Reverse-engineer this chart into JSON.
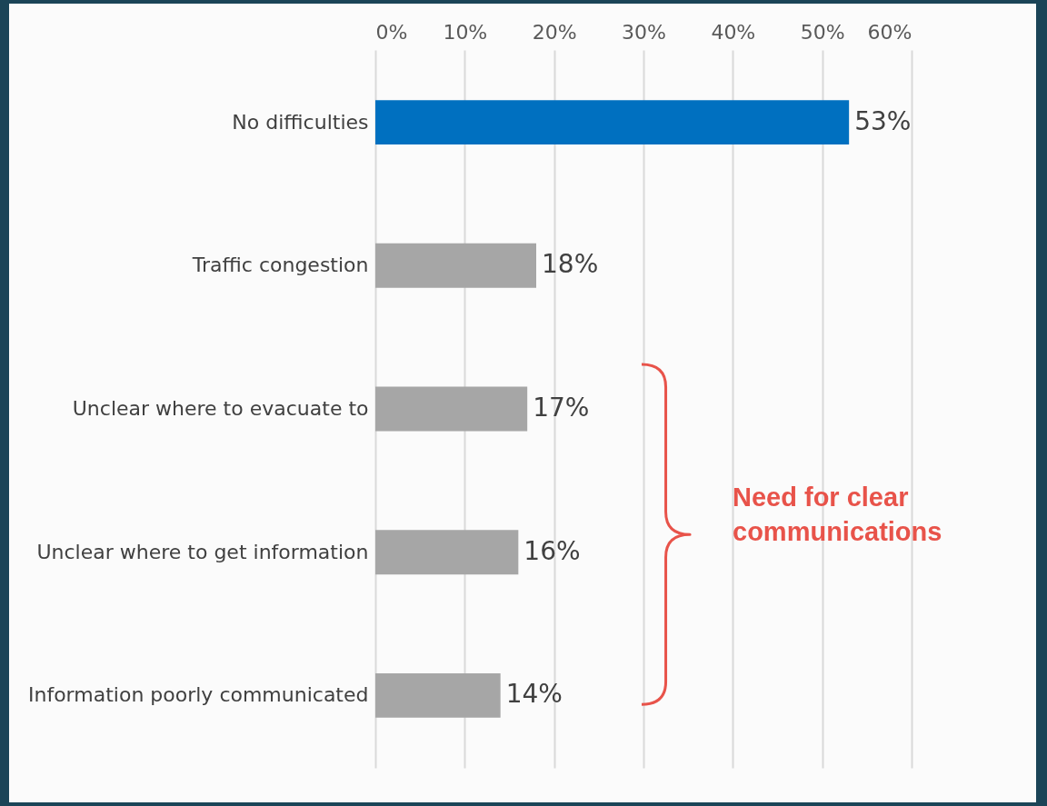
{
  "chart_data": {
    "type": "bar",
    "orientation": "horizontal",
    "categories": [
      "No difficulties",
      "Traffic congestion",
      "Unclear where to evacuate to",
      "Unclear where to get information",
      "Information poorly communicated"
    ],
    "values": [
      53,
      18,
      17,
      16,
      14
    ],
    "colors": [
      "#0070c0",
      "#a6a6a6",
      "#a6a6a6",
      "#a6a6a6",
      "#a6a6a6"
    ],
    "value_labels": [
      "53%",
      "18%",
      "17%",
      "16%",
      "14%"
    ],
    "xlim": [
      0,
      60
    ],
    "xticks": [
      {
        "value": 0,
        "label": "0%"
      },
      {
        "value": 10,
        "label": "10%"
      },
      {
        "value": 20,
        "label": "20%"
      },
      {
        "value": 30,
        "label": "30%"
      },
      {
        "value": 40,
        "label": "40%"
      },
      {
        "value": 50,
        "label": "50%"
      },
      {
        "value": 60,
        "label": "60%"
      }
    ],
    "grid": "x",
    "annotations": [
      "Need for clear communications"
    ]
  }
}
